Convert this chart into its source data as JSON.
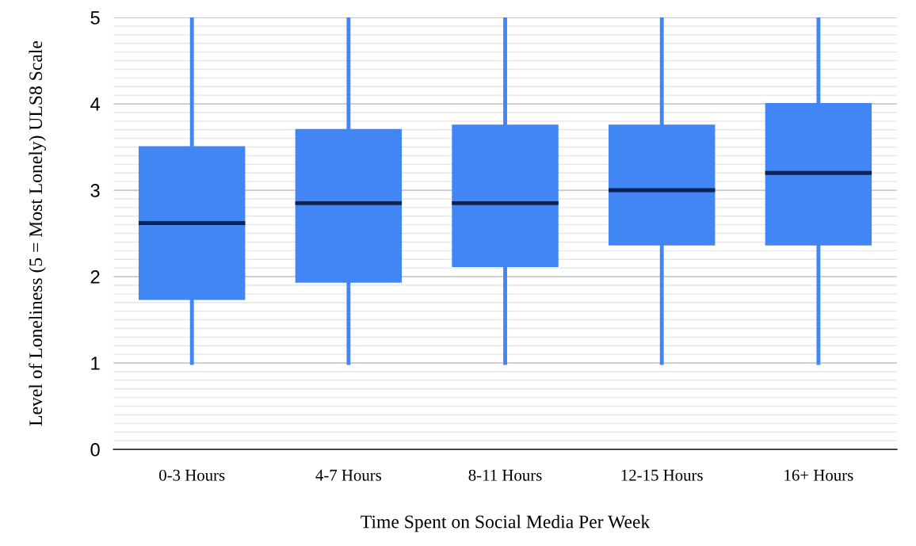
{
  "chart_data": {
    "type": "box",
    "xlabel": "Time Spent on Social Media Per Week",
    "ylabel": "Level of Loneliness (5 = Most Lonely) ULS8 Scale",
    "categories": [
      "0-3 Hours",
      "4-7 Hours",
      "8-11 Hours",
      "12-15 Hours",
      "16+ Hours"
    ],
    "color": "#4285f4",
    "boxes": [
      {
        "low": 1,
        "q1": 1.73,
        "median": 2.62,
        "q3": 3.51,
        "high": 5
      },
      {
        "low": 1,
        "q1": 1.93,
        "median": 2.85,
        "q3": 3.71,
        "high": 5
      },
      {
        "low": 1,
        "q1": 2.11,
        "median": 2.85,
        "q3": 3.76,
        "high": 5
      },
      {
        "low": 1,
        "q1": 2.36,
        "median": 3.0,
        "q3": 3.76,
        "high": 5
      },
      {
        "low": 1,
        "q1": 2.36,
        "median": 3.2,
        "q3": 4.01,
        "high": 5
      }
    ],
    "ylim": [
      0,
      5
    ],
    "yticks": [
      0,
      {
        "value": 0.1,
        "label": null
      },
      {
        "value": 0.2,
        "label": null
      },
      {
        "value": 0.3,
        "label": null
      },
      {
        "value": 0.4,
        "label": null
      },
      {
        "value": 0.5,
        "label": null
      },
      {
        "value": 0.6,
        "label": null
      },
      {
        "value": 0.7,
        "label": null
      },
      {
        "value": 0.8,
        "label": null
      },
      {
        "value": 0.9,
        "label": null
      },
      1,
      {
        "value": 1.1,
        "label": null
      },
      {
        "value": 1.2,
        "label": null
      },
      {
        "value": 1.3,
        "label": null
      },
      {
        "value": 1.4,
        "label": null
      },
      {
        "value": 1.5,
        "label": null
      },
      {
        "value": 1.6,
        "label": null
      },
      {
        "value": 1.7,
        "label": null
      },
      {
        "value": 1.8,
        "label": null
      },
      {
        "value": 1.9,
        "label": null
      },
      2,
      {
        "value": 2.1,
        "label": null
      },
      {
        "value": 2.2,
        "label": null
      },
      {
        "value": 2.3,
        "label": null
      },
      {
        "value": 2.4,
        "label": null
      },
      {
        "value": 2.5,
        "label": null
      },
      {
        "value": 2.6,
        "label": null
      },
      {
        "value": 2.7,
        "label": null
      },
      {
        "value": 2.8,
        "label": null
      },
      {
        "value": 2.9,
        "label": null
      },
      3,
      {
        "value": 3.1,
        "label": null
      },
      {
        "value": 3.2,
        "label": null
      },
      {
        "value": 3.3,
        "label": null
      },
      {
        "value": 3.4,
        "label": null
      },
      {
        "value": 3.5,
        "label": null
      },
      {
        "value": 3.6,
        "label": null
      },
      {
        "value": 3.7,
        "label": null
      },
      {
        "value": 3.8,
        "label": null
      },
      {
        "value": 3.9,
        "label": null
      },
      4,
      {
        "value": 4.1,
        "label": null
      },
      {
        "value": 4.2,
        "label": null
      },
      {
        "value": 4.3,
        "label": null
      },
      {
        "value": 4.4,
        "label": null
      },
      {
        "value": 4.5,
        "label": null
      },
      {
        "value": 4.6,
        "label": null
      },
      {
        "value": 4.7,
        "label": null
      },
      {
        "value": 4.8,
        "label": null
      },
      {
        "value": 4.9,
        "label": null
      },
      5
    ],
    "grid": "y"
  }
}
